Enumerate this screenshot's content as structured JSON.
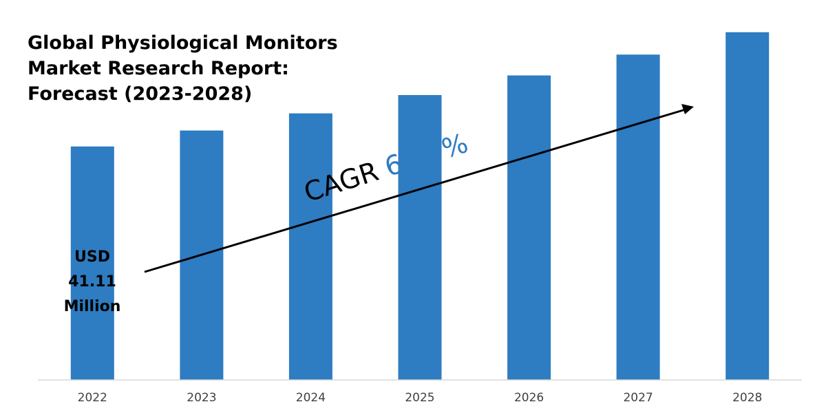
{
  "chart_data": {
    "type": "bar",
    "title": "Global Physiological Monitors Market Research Report: Forecast (2023-2028)",
    "title_lines": [
      "Global Physiological Monitors",
      "Market Research Report:",
      "Forecast (2023-2028)"
    ],
    "categories": [
      "2022",
      "2023",
      "2024",
      "2025",
      "2026",
      "2027",
      "2028"
    ],
    "values": [
      41.11,
      43.93,
      46.95,
      50.17,
      53.62,
      57.3,
      61.24
    ],
    "unit": "USD Million",
    "xlabel": "",
    "ylabel": "",
    "ylim": [
      0,
      64
    ],
    "grid": false,
    "legend": "none",
    "first_value_label": [
      "USD",
      "41.11",
      "Million"
    ],
    "annotation": {
      "prefix": "CAGR",
      "value": "6.87%"
    },
    "colors": {
      "bar": "#2e7cc2",
      "annotation_value": "#2e7cc2",
      "axis": "#d9d9d9",
      "text": "#000000",
      "tick_label": "#404040"
    }
  }
}
